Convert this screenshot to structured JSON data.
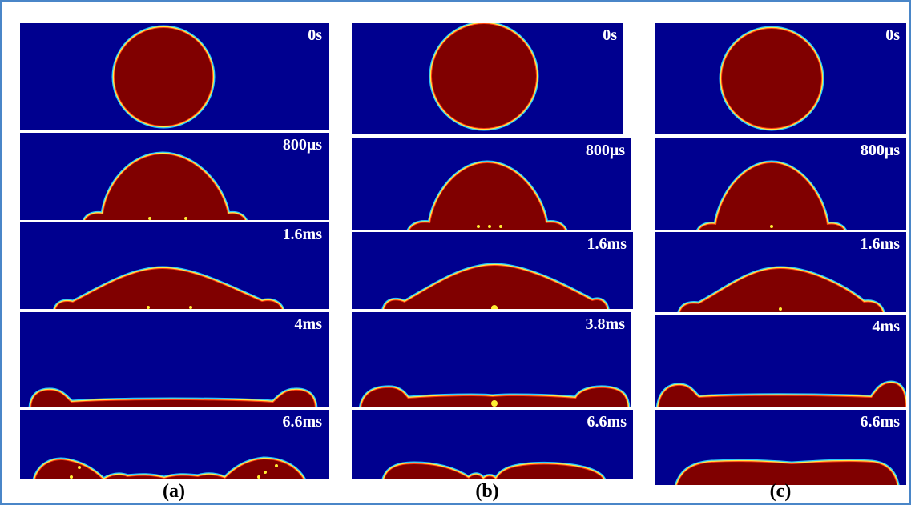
{
  "colors": {
    "background_field": "#00008f",
    "droplet": "#800000",
    "interface_outer": "#29c9ff",
    "interface_mid": "#ffe94a",
    "interface_inner": "#ff3b10",
    "hot_spot": "#ffee33",
    "frame_border": "#4a86c8"
  },
  "columns": [
    {
      "label": "(a)",
      "panels": [
        {
          "time": "0s",
          "stage": "sphere"
        },
        {
          "time": "800μs",
          "stage": "dome"
        },
        {
          "time": "1.6ms",
          "stage": "spread"
        },
        {
          "time": "4ms",
          "stage": "film"
        },
        {
          "time": "6.6ms",
          "stage": "recoil"
        }
      ]
    },
    {
      "label": "(b)",
      "panels": [
        {
          "time": "0s",
          "stage": "sphere"
        },
        {
          "time": "800μs",
          "stage": "dome"
        },
        {
          "time": "1.6ms",
          "stage": "spread"
        },
        {
          "time": "3.8ms",
          "stage": "film"
        },
        {
          "time": "6.6ms",
          "stage": "recoil"
        }
      ]
    },
    {
      "label": "(c)",
      "panels": [
        {
          "time": "0s",
          "stage": "sphere"
        },
        {
          "time": "800μs",
          "stage": "dome"
        },
        {
          "time": "1.6ms",
          "stage": "spread"
        },
        {
          "time": "4ms",
          "stage": "film"
        },
        {
          "time": "6.6ms",
          "stage": "recoil"
        }
      ]
    }
  ]
}
